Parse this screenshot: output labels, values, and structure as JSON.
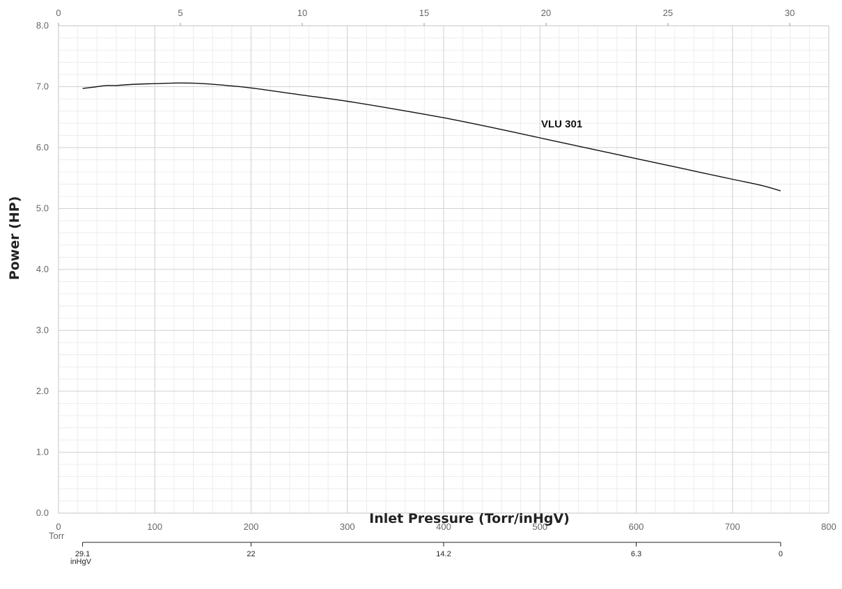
{
  "chart_data": {
    "type": "line",
    "ylabel": "Power (HP)",
    "xlabel": "Inlet Pressure (Torr/inHgV)",
    "xlim": [
      0,
      800
    ],
    "ylim": [
      0,
      8
    ],
    "y_ticks": [
      "0.0",
      "1.0",
      "2.0",
      "3.0",
      "4.0",
      "5.0",
      "6.0",
      "7.0",
      "8.0"
    ],
    "x_ticks": [
      "0",
      "100",
      "200",
      "300",
      "400",
      "500",
      "600",
      "700",
      "800"
    ],
    "x_unit_label": "Torr",
    "top_axis": {
      "ticks": [
        "0",
        "5",
        "10",
        "15",
        "20",
        "25",
        "30"
      ],
      "values": [
        0,
        5,
        10,
        15,
        20,
        25,
        30
      ]
    },
    "inhg_axis": {
      "ticks": [
        {
          "torr": 25,
          "label": "29.1"
        },
        {
          "torr": 200,
          "label": "22"
        },
        {
          "torr": 400,
          "label": "14.2"
        },
        {
          "torr": 600,
          "label": "6.3"
        },
        {
          "torr": 750,
          "label": "0"
        }
      ],
      "unit_label": "inHgV"
    },
    "grid": true,
    "series": [
      {
        "name": "VLU 301",
        "color": "#111111",
        "x": [
          25,
          40,
          50,
          60,
          80,
          100,
          120,
          135,
          150,
          175,
          200,
          250,
          300,
          350,
          400,
          450,
          500,
          550,
          600,
          650,
          700,
          730,
          750
        ],
        "y": [
          6.97,
          7.0,
          7.02,
          7.02,
          7.04,
          7.05,
          7.06,
          7.06,
          7.05,
          7.02,
          6.98,
          6.87,
          6.76,
          6.63,
          6.49,
          6.33,
          6.16,
          5.99,
          5.82,
          5.65,
          5.48,
          5.38,
          5.29
        ]
      }
    ]
  }
}
